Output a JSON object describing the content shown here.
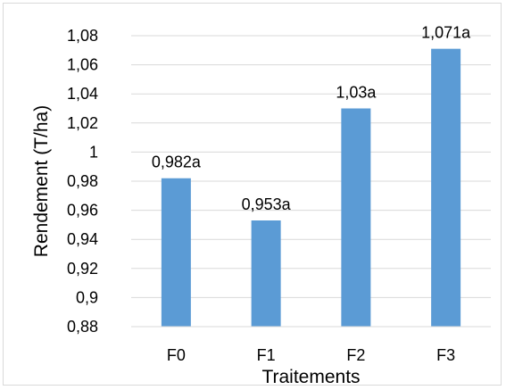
{
  "chart_data": {
    "type": "bar",
    "title": "",
    "xlabel": "Traitements",
    "ylabel": "Rendement (T/ha)",
    "categories": [
      "F0",
      "F1",
      "F2",
      "F3"
    ],
    "values": [
      0.982,
      0.953,
      1.03,
      1.071
    ],
    "data_labels": [
      "0,982a",
      "0,953a",
      "1,03a",
      "1,071a"
    ],
    "ylim": [
      0.88,
      1.08
    ],
    "yticks": [
      0.88,
      0.9,
      0.92,
      0.94,
      0.96,
      0.98,
      1,
      1.02,
      1.04,
      1.06,
      1.08
    ],
    "ytick_labels": [
      "0,88",
      "0,9",
      "0,92",
      "0,94",
      "0,96",
      "0,98",
      "1",
      "1,02",
      "1,04",
      "1,06",
      "1,08"
    ],
    "grid": true,
    "legend": "none",
    "bar_color": "#5b9bd5",
    "gridline_color": "#d9d9d9"
  }
}
